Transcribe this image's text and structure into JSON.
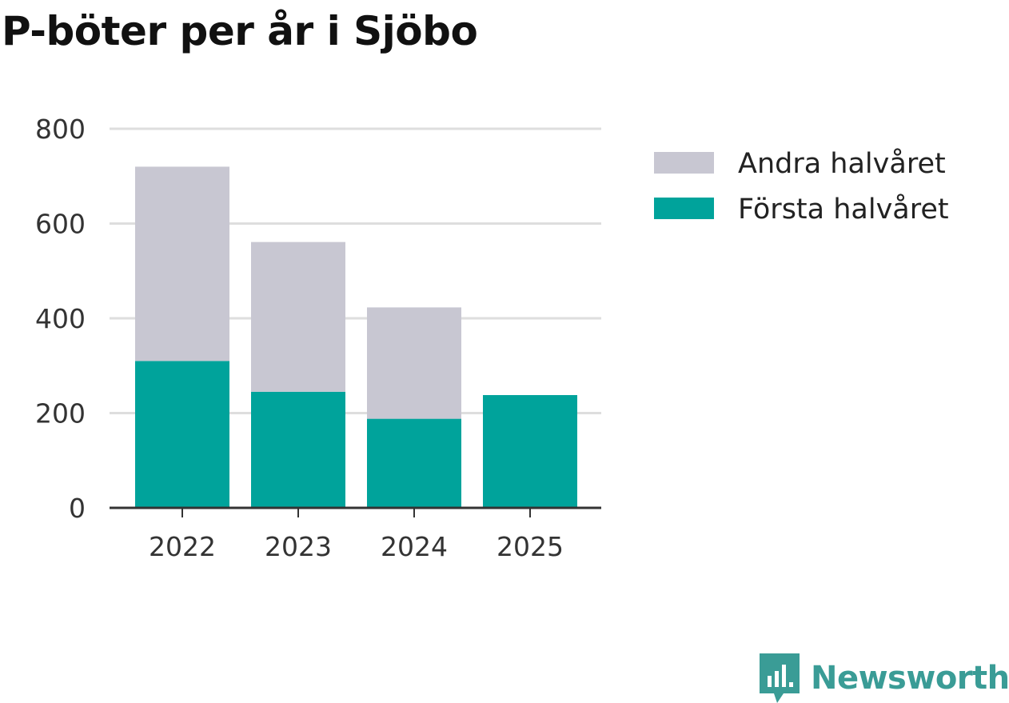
{
  "chart_data": {
    "type": "bar",
    "stacked": true,
    "title": "P-böter per år i Sjöbo",
    "categories": [
      "2022",
      "2023",
      "2024",
      "2025"
    ],
    "series": [
      {
        "name": "Första halvåret",
        "color": "#00a39b",
        "values": [
          310,
          245,
          188,
          238
        ]
      },
      {
        "name": "Andra halvåret",
        "color": "#c8c7d2",
        "values": [
          410,
          316,
          235,
          0
        ]
      }
    ],
    "legend_order": [
      "Andra halvåret",
      "Första halvåret"
    ],
    "yticks": [
      0,
      200,
      400,
      600,
      800
    ],
    "ylim": [
      0,
      800
    ],
    "xlabel": "",
    "ylabel": "",
    "grid": true,
    "legend_position": "right"
  },
  "brand": {
    "name": "Newsworthy",
    "color": "#3a9c96"
  }
}
